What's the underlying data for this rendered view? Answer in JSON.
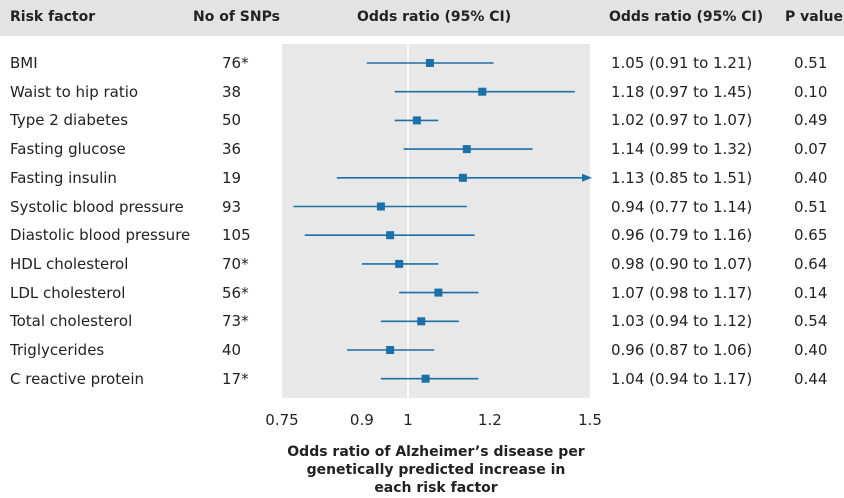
{
  "headers": {
    "risk_factor": "Risk factor",
    "n_snps": "No of SNPs",
    "plot_title": "Odds ratio (95% CI)",
    "or_col": "Odds ratio (95% CI)",
    "p_col": "P value"
  },
  "caption": "Odds ratio of Alzheimer’s disease per genetically predicted increase in each risk factor",
  "colors": {
    "marker": "#1d6fa8",
    "plot_bg": "#e8e8e8",
    "header_bg": "#e3e3e3"
  },
  "chart_data": {
    "type": "forest",
    "x_scale": "log",
    "xlim": [
      0.75,
      1.5
    ],
    "xticks": [
      0.75,
      0.9,
      1,
      1.2,
      1.5
    ],
    "tick_labels": [
      "0.75",
      "0.9",
      "1",
      "1.2",
      "1.5"
    ],
    "reference_line": 1,
    "rows": [
      {
        "label": "BMI",
        "n_snps": "76*",
        "or": 1.05,
        "lo": 0.91,
        "hi": 1.21,
        "ci_text": "1.05 (0.91 to 1.21)",
        "p": "0.51"
      },
      {
        "label": "Waist to hip ratio",
        "n_snps": "38",
        "or": 1.18,
        "lo": 0.97,
        "hi": 1.45,
        "ci_text": "1.18 (0.97 to 1.45)",
        "p": "0.10"
      },
      {
        "label": "Type 2 diabetes",
        "n_snps": "50",
        "or": 1.02,
        "lo": 0.97,
        "hi": 1.07,
        "ci_text": "1.02 (0.97 to 1.07)",
        "p": "0.49"
      },
      {
        "label": "Fasting glucose",
        "n_snps": "36",
        "or": 1.14,
        "lo": 0.99,
        "hi": 1.32,
        "ci_text": "1.14 (0.99 to 1.32)",
        "p": "0.07"
      },
      {
        "label": "Fasting insulin",
        "n_snps": "19",
        "or": 1.13,
        "lo": 0.85,
        "hi": 1.51,
        "ci_text": "1.13 (0.85 to 1.51)",
        "p": "0.40"
      },
      {
        "label": "Systolic blood pressure",
        "n_snps": "93",
        "or": 0.94,
        "lo": 0.77,
        "hi": 1.14,
        "ci_text": "0.94 (0.77 to 1.14)",
        "p": "0.51"
      },
      {
        "label": "Diastolic blood pressure",
        "n_snps": "105",
        "or": 0.96,
        "lo": 0.79,
        "hi": 1.16,
        "ci_text": "0.96 (0.79 to 1.16)",
        "p": "0.65"
      },
      {
        "label": "HDL cholesterol",
        "n_snps": "70*",
        "or": 0.98,
        "lo": 0.9,
        "hi": 1.07,
        "ci_text": "0.98 (0.90 to 1.07)",
        "p": "0.64"
      },
      {
        "label": "LDL cholesterol",
        "n_snps": "56*",
        "or": 1.07,
        "lo": 0.98,
        "hi": 1.17,
        "ci_text": "1.07 (0.98 to 1.17)",
        "p": "0.14"
      },
      {
        "label": "Total cholesterol",
        "n_snps": "73*",
        "or": 1.03,
        "lo": 0.94,
        "hi": 1.12,
        "ci_text": "1.03 (0.94 to 1.12)",
        "p": "0.54"
      },
      {
        "label": "Triglycerides",
        "n_snps": "40",
        "or": 0.96,
        "lo": 0.87,
        "hi": 1.06,
        "ci_text": "0.96 (0.87 to 1.06)",
        "p": "0.40"
      },
      {
        "label": "C reactive protein",
        "n_snps": "17*",
        "or": 1.04,
        "lo": 0.94,
        "hi": 1.17,
        "ci_text": "1.04 (0.94 to 1.17)",
        "p": "0.44"
      }
    ]
  }
}
